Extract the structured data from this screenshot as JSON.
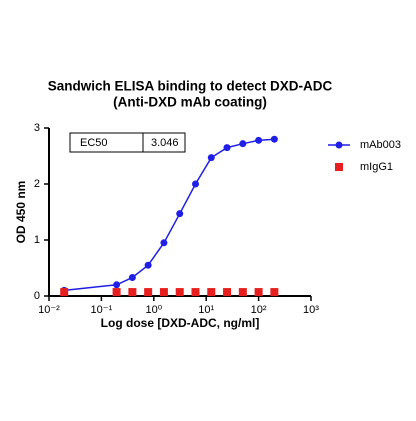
{
  "chart_data": {
    "type": "scatter",
    "title": [
      "Sandwich ELISA binding to detect DXD-ADC",
      "(Anti-DXD mAb coating)"
    ],
    "xlabel": "Log dose [DXD-ADC, ng/ml]",
    "ylabel": "OD 450 nm",
    "xscale": "log",
    "xlim": [
      0.01,
      1000
    ],
    "xticks": [
      {
        "value": 0.01,
        "label": "10⁻²"
      },
      {
        "value": 0.1,
        "label": "10⁻¹"
      },
      {
        "value": 1,
        "label": "10⁰"
      },
      {
        "value": 10,
        "label": "10¹"
      },
      {
        "value": 100,
        "label": "10²"
      },
      {
        "value": 1000,
        "label": "10³"
      }
    ],
    "ylim": [
      0,
      3
    ],
    "yticks": [
      0,
      1,
      2,
      3
    ],
    "table": {
      "header": "EC50",
      "value": "3.046"
    },
    "series": [
      {
        "name": "mAb003",
        "color": "#1f1fe6",
        "marker": "circle",
        "line": true,
        "x": [
          0.0195,
          0.195,
          0.39,
          0.78,
          1.56,
          3.125,
          6.25,
          12.5,
          25,
          50,
          100,
          200
        ],
        "values": [
          0.1,
          0.2,
          0.33,
          0.55,
          0.95,
          1.47,
          2.0,
          2.47,
          2.65,
          2.72,
          2.78,
          2.8
        ]
      },
      {
        "name": "mIgG1",
        "color": "#e61e1e",
        "marker": "square",
        "line": false,
        "x": [
          0.0195,
          0.195,
          0.39,
          0.78,
          1.56,
          3.125,
          6.25,
          12.5,
          25,
          50,
          100,
          200
        ],
        "values": [
          0.07,
          0.07,
          0.07,
          0.07,
          0.07,
          0.07,
          0.07,
          0.07,
          0.07,
          0.07,
          0.07,
          0.07
        ]
      }
    ]
  }
}
